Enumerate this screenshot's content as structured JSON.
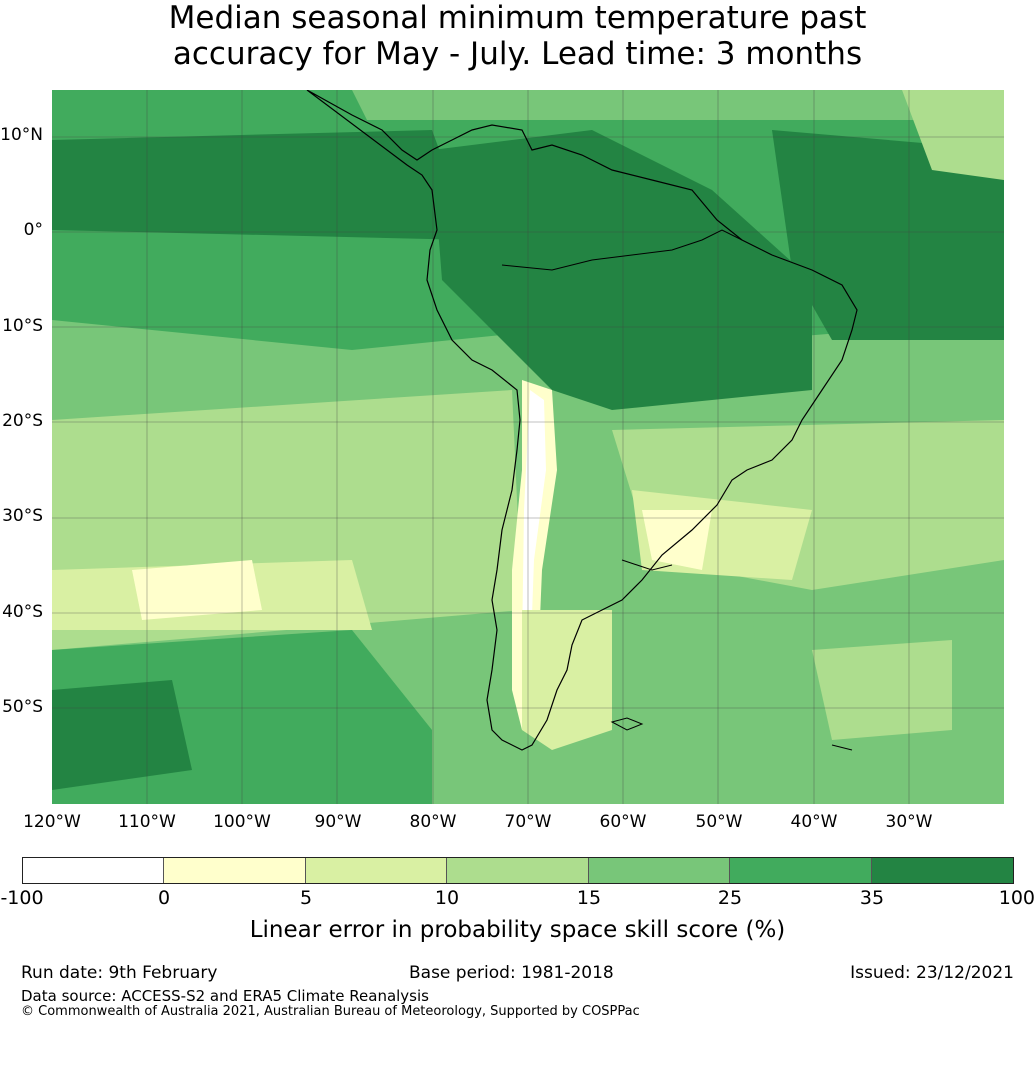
{
  "title": {
    "line1": "Median seasonal minimum temperature past",
    "line2": "accuracy for May - July. Lead time: 3 months"
  },
  "map": {
    "lat_labels": [
      "10°N",
      "0°",
      "10°S",
      "20°S",
      "30°S",
      "40°S",
      "50°S"
    ],
    "lon_labels": [
      "120°W",
      "110°W",
      "100°W",
      "90°W",
      "80°W",
      "70°W",
      "60°W",
      "50°W",
      "40°W",
      "30°W"
    ]
  },
  "colorbar": {
    "ticks": [
      "-100",
      "0",
      "5",
      "10",
      "15",
      "25",
      "35",
      "100"
    ],
    "colors": [
      "#ffffff",
      "#ffffcc",
      "#d9f0a3",
      "#addd8e",
      "#78c679",
      "#41ab5d",
      "#238443"
    ],
    "label": "Linear error in probability space skill score (%)"
  },
  "footer": {
    "run_date": "Run date: 9th February",
    "base_period": "Base period: 1981-2018",
    "issued": "Issued: 23/12/2021",
    "data_source": "Data source: ACCESS-S2 and ERA5 Climate Reanalysis",
    "copyright": "© Commonwealth of Australia 2021, Australian Bureau of Meteorology, Supported by COSPPac"
  }
}
